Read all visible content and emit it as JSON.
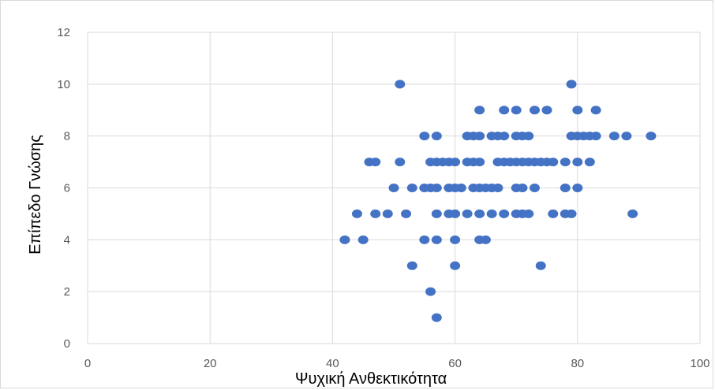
{
  "chart_data": {
    "type": "scatter",
    "title": "",
    "xlabel": "Ψυχική Ανθεκτικότητα",
    "ylabel": "Επίπεδο Γνώσης",
    "xlim": [
      0,
      100
    ],
    "ylim": [
      0,
      12
    ],
    "xticks": [
      0,
      20,
      40,
      60,
      80,
      100
    ],
    "yticks": [
      0,
      2,
      4,
      6,
      8,
      10,
      12
    ],
    "grid": true,
    "legend": "none",
    "marker_color": "#4472c4",
    "series": [
      {
        "x": [
          51,
          79,
          64,
          68,
          70,
          73,
          75,
          80,
          83,
          55,
          57,
          62,
          63,
          64,
          66,
          67,
          68,
          70,
          71,
          72,
          79,
          80,
          81,
          82,
          83,
          86,
          88,
          92,
          46,
          47,
          51,
          56,
          57,
          58,
          59,
          60,
          62,
          63,
          64,
          67,
          68,
          69,
          70,
          71,
          72,
          73,
          74,
          75,
          76,
          78,
          80,
          82,
          50,
          53,
          55,
          56,
          57,
          59,
          60,
          61,
          63,
          64,
          65,
          66,
          67,
          70,
          71,
          73,
          78,
          80,
          44,
          47,
          49,
          52,
          57,
          59,
          60,
          62,
          64,
          66,
          68,
          70,
          71,
          72,
          76,
          78,
          79,
          89,
          42,
          45,
          55,
          57,
          60,
          64,
          65,
          53,
          60,
          74,
          56,
          57
        ],
        "y": [
          10,
          10,
          9,
          9,
          9,
          9,
          9,
          9,
          9,
          8,
          8,
          8,
          8,
          8,
          8,
          8,
          8,
          8,
          8,
          8,
          8,
          8,
          8,
          8,
          8,
          8,
          8,
          8,
          7,
          7,
          7,
          7,
          7,
          7,
          7,
          7,
          7,
          7,
          7,
          7,
          7,
          7,
          7,
          7,
          7,
          7,
          7,
          7,
          7,
          7,
          7,
          7,
          6,
          6,
          6,
          6,
          6,
          6,
          6,
          6,
          6,
          6,
          6,
          6,
          6,
          6,
          6,
          6,
          6,
          6,
          5,
          5,
          5,
          5,
          5,
          5,
          5,
          5,
          5,
          5,
          5,
          5,
          5,
          5,
          5,
          5,
          5,
          5,
          4,
          4,
          4,
          4,
          4,
          4,
          4,
          3,
          3,
          3,
          2,
          1
        ]
      }
    ]
  }
}
